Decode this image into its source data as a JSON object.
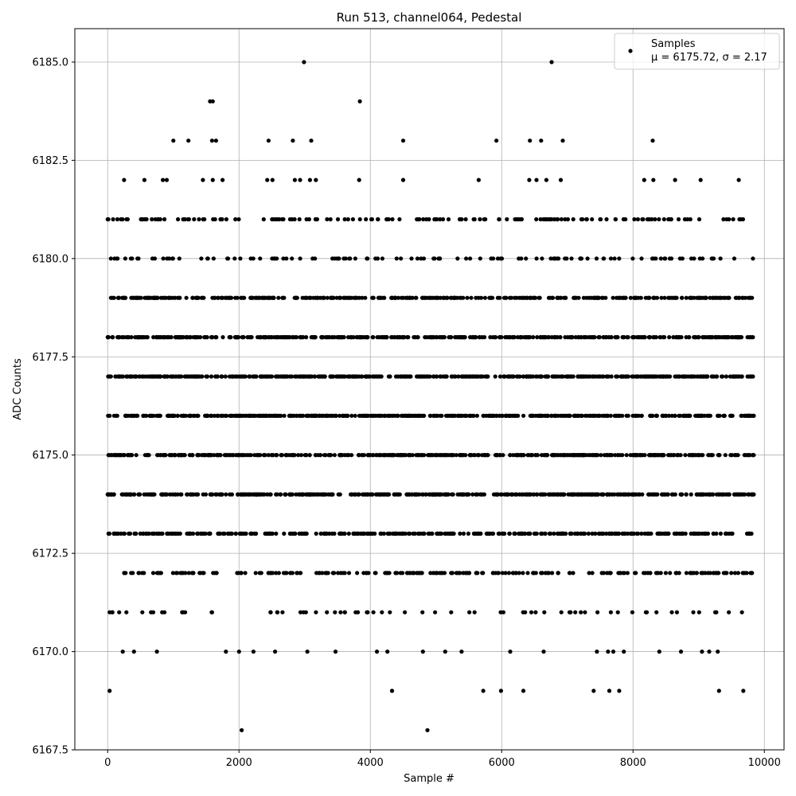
{
  "chart_data": {
    "type": "scatter",
    "title": "Run 513, channel064, Pedestal",
    "xlabel": "Sample #",
    "ylabel": "ADC Counts",
    "xlim": [
      -500,
      10300
    ],
    "ylim": [
      6167.5,
      6185.85
    ],
    "xticks": [
      0,
      2000,
      4000,
      6000,
      8000,
      10000
    ],
    "yticks": [
      6167.5,
      6170.0,
      6172.5,
      6175.0,
      6177.5,
      6180.0,
      6182.5,
      6185.0
    ],
    "xtick_labels": [
      "0",
      "2000",
      "4000",
      "6000",
      "8000",
      "10000"
    ],
    "ytick_labels": [
      "6167.5",
      "6170.0",
      "6172.5",
      "6175.0",
      "6177.5",
      "6180.0",
      "6182.5",
      "6185.0"
    ],
    "grid": true,
    "legend_position": "top-right",
    "marker_color": "#000000",
    "series": [
      {
        "name": "Samples",
        "stats": "μ = 6175.72, σ = 2.17",
        "x_range": [
          0,
          9840
        ],
        "y_levels": [
          6168,
          6169,
          6170,
          6171,
          6172,
          6173,
          6174,
          6175,
          6176,
          6177,
          6178,
          6179,
          6180,
          6181,
          6182,
          6183,
          6184,
          6185
        ],
        "points": [
          [
            30,
            6169
          ],
          [
            2040,
            6168
          ],
          [
            2990,
            6185
          ],
          [
            3840,
            6184
          ],
          [
            1560,
            6184
          ],
          [
            1600,
            6184
          ],
          [
            4870,
            6168
          ],
          [
            6760,
            6185
          ],
          [
            4330,
            6169
          ],
          [
            5720,
            6169
          ],
          [
            5990,
            6169
          ],
          [
            6330,
            6169
          ],
          [
            7400,
            6169
          ],
          [
            7640,
            6169
          ],
          [
            7790,
            6169
          ],
          [
            9310,
            6169
          ],
          [
            9680,
            6169
          ],
          [
            1000,
            6183
          ],
          [
            1230,
            6183
          ],
          [
            1590,
            6183
          ],
          [
            1650,
            6183
          ],
          [
            2450,
            6183
          ],
          [
            2820,
            6183
          ],
          [
            3100,
            6183
          ],
          [
            4500,
            6183
          ],
          [
            5920,
            6183
          ],
          [
            6430,
            6183
          ],
          [
            6600,
            6183
          ],
          [
            6930,
            6183
          ],
          [
            8300,
            6183
          ],
          [
            250,
            6182
          ],
          [
            560,
            6182
          ],
          [
            840,
            6182
          ],
          [
            900,
            6182
          ],
          [
            1450,
            6182
          ],
          [
            1600,
            6182
          ],
          [
            1750,
            6182
          ],
          [
            2430,
            6182
          ],
          [
            2510,
            6182
          ],
          [
            2850,
            6182
          ],
          [
            2930,
            6182
          ],
          [
            3080,
            6182
          ],
          [
            3170,
            6182
          ],
          [
            3830,
            6182
          ],
          [
            4500,
            6182
          ],
          [
            5650,
            6182
          ],
          [
            6420,
            6182
          ],
          [
            6530,
            6182
          ],
          [
            6680,
            6182
          ],
          [
            6900,
            6182
          ],
          [
            8170,
            6182
          ],
          [
            8310,
            6182
          ],
          [
            8640,
            6182
          ],
          [
            9030,
            6182
          ],
          [
            9610,
            6182
          ],
          [
            230,
            6170
          ],
          [
            400,
            6170
          ],
          [
            750,
            6170
          ],
          [
            1800,
            6170
          ],
          [
            2000,
            6170
          ],
          [
            2220,
            6170
          ],
          [
            2550,
            6170
          ],
          [
            3040,
            6170
          ],
          [
            3470,
            6170
          ],
          [
            4100,
            6170
          ],
          [
            4260,
            6170
          ],
          [
            4800,
            6170
          ],
          [
            5140,
            6170
          ],
          [
            5390,
            6170
          ],
          [
            6130,
            6170
          ],
          [
            6640,
            6170
          ],
          [
            7450,
            6170
          ],
          [
            7620,
            6170
          ],
          [
            7700,
            6170
          ],
          [
            7860,
            6170
          ],
          [
            8400,
            6170
          ],
          [
            8730,
            6170
          ],
          [
            9050,
            6170
          ],
          [
            9160,
            6170
          ],
          [
            9290,
            6170
          ]
        ],
        "notes": "Dense band levels 6171–6181 are drawn as many samples spread across x_range; sparse outliers listed in points."
      }
    ]
  }
}
